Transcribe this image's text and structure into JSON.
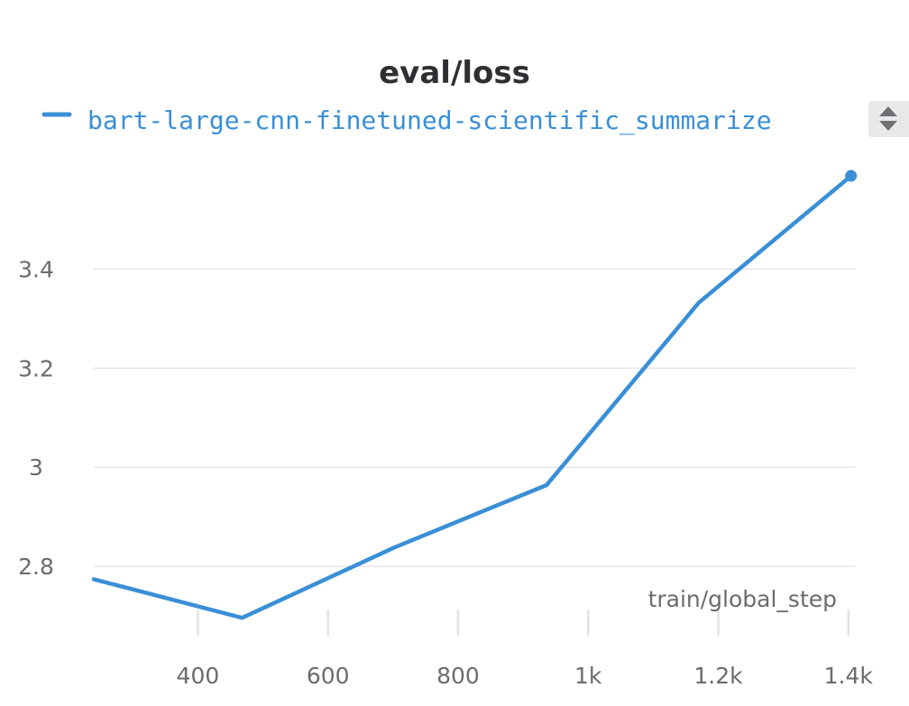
{
  "chart_data": {
    "type": "line",
    "title": "eval/loss",
    "xlabel": "train/global_step",
    "ylabel": "",
    "xlim": [
      240,
      1410
    ],
    "ylim": [
      2.66,
      3.67
    ],
    "x_ticks": [
      {
        "value": 400,
        "label": "400"
      },
      {
        "value": 600,
        "label": "600"
      },
      {
        "value": 800,
        "label": "800"
      },
      {
        "value": 1000,
        "label": "1k"
      },
      {
        "value": 1200,
        "label": "1.2k"
      },
      {
        "value": 1400,
        "label": "1.4k"
      }
    ],
    "y_ticks": [
      {
        "value": 2.8,
        "label": "2.8"
      },
      {
        "value": 3.0,
        "label": "3"
      },
      {
        "value": 3.2,
        "label": "3.2"
      },
      {
        "value": 3.4,
        "label": "3.4"
      }
    ],
    "grid": true,
    "legend_position": "top-left",
    "series": [
      {
        "name": "bart-large-cnn-finetuned-scientific_summarize",
        "color": "#3a8fd6",
        "x": [
          240,
          468,
          702,
          936,
          1170,
          1404
        ],
        "y": [
          2.774,
          2.696,
          2.838,
          2.964,
          3.332,
          3.588
        ]
      }
    ]
  },
  "controls": {
    "scroll_arrows_icon": "up-down-arrows-icon"
  }
}
